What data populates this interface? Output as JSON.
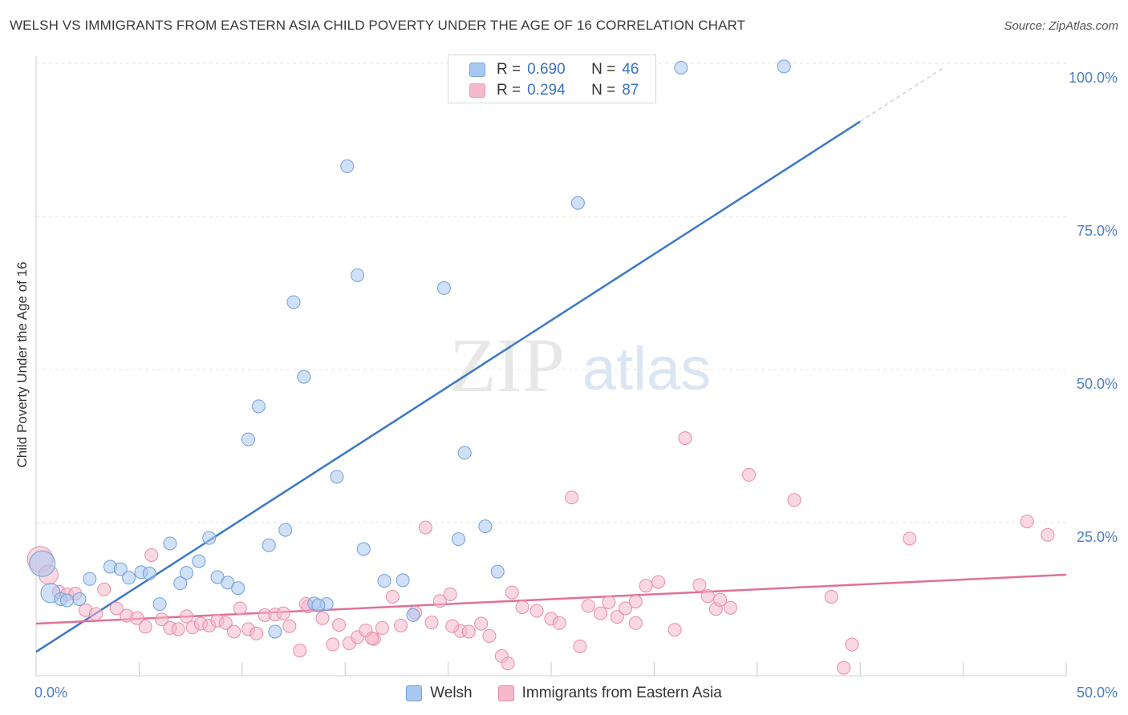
{
  "title": "WELSH VS IMMIGRANTS FROM EASTERN ASIA CHILD POVERTY UNDER THE AGE OF 16 CORRELATION CHART",
  "source": "Source: ZipAtlas.com",
  "watermark": {
    "zip": "ZIP",
    "atlas": "atlas"
  },
  "stats_legend": [
    {
      "r_label": "R =",
      "r_value": "0.690",
      "n_label": "N =",
      "n_value": "46",
      "color": "#a9c8f0"
    },
    {
      "r_label": "R =",
      "r_value": "0.294",
      "n_label": "N =",
      "n_value": "87",
      "color": "#f6b8cb"
    }
  ],
  "chart_data": {
    "type": "scatter",
    "ylabel": "Child Poverty Under the Age of 16",
    "xlim": [
      0,
      50
    ],
    "ylim": [
      0,
      100
    ],
    "x_tick_labels": [
      {
        "value": 0,
        "label": "0.0%"
      },
      {
        "value": 50,
        "label": "50.0%"
      }
    ],
    "y_tick_labels": [
      {
        "value": 25,
        "label": "25.0%"
      },
      {
        "value": 50,
        "label": "50.0%"
      },
      {
        "value": 75,
        "label": "75.0%"
      },
      {
        "value": 100,
        "label": "100.0%"
      }
    ],
    "grid": true,
    "series": [
      {
        "name": "Welsh",
        "color": "#a9c8f0",
        "stroke": "#6f9fd8",
        "trend": {
          "x0": 0,
          "y0": 3.9,
          "x1": 40,
          "y1": 90.5,
          "dash_to_x": 44,
          "dash_to_y": 99.2,
          "color": "#3a78c9"
        },
        "points": [
          [
            0.3,
            18.3,
            3
          ],
          [
            0.7,
            13.5,
            2
          ],
          [
            1.2,
            12.5,
            1
          ],
          [
            1.5,
            12.3,
            1
          ],
          [
            2.1,
            12.5,
            1
          ],
          [
            2.6,
            15.8,
            1
          ],
          [
            3.6,
            17.8,
            1
          ],
          [
            4.1,
            17.4,
            1
          ],
          [
            4.5,
            16.0,
            1
          ],
          [
            5.1,
            16.9,
            1
          ],
          [
            5.5,
            16.7,
            1
          ],
          [
            6.0,
            11.7,
            1
          ],
          [
            6.5,
            21.6,
            1
          ],
          [
            7.0,
            15.1,
            1
          ],
          [
            7.3,
            16.8,
            1
          ],
          [
            7.9,
            18.7,
            1
          ],
          [
            8.4,
            22.5,
            1
          ],
          [
            8.8,
            16.1,
            1
          ],
          [
            9.3,
            15.2,
            1
          ],
          [
            9.8,
            14.3,
            1
          ],
          [
            10.3,
            38.6,
            1
          ],
          [
            10.8,
            44.0,
            1
          ],
          [
            11.3,
            21.3,
            1
          ],
          [
            11.6,
            7.2,
            1
          ],
          [
            12.1,
            23.8,
            1
          ],
          [
            12.5,
            61.0,
            1
          ],
          [
            13.0,
            48.8,
            1
          ],
          [
            13.5,
            11.8,
            1
          ],
          [
            14.1,
            11.7,
            1
          ],
          [
            14.6,
            32.5,
            1
          ],
          [
            15.1,
            83.2,
            1
          ],
          [
            15.6,
            65.4,
            1
          ],
          [
            15.9,
            20.7,
            1
          ],
          [
            16.9,
            15.5,
            1
          ],
          [
            17.8,
            15.6,
            1
          ],
          [
            18.3,
            9.9,
            1
          ],
          [
            19.8,
            63.3,
            1
          ],
          [
            20.5,
            22.3,
            1
          ],
          [
            20.8,
            36.4,
            1
          ],
          [
            21.8,
            24.4,
            1
          ],
          [
            22.4,
            17.0,
            1
          ],
          [
            23.8,
            99.5,
            1
          ],
          [
            26.3,
            77.2,
            1
          ],
          [
            31.3,
            99.3,
            1
          ],
          [
            36.3,
            99.5,
            1
          ],
          [
            13.7,
            11.5,
            1
          ]
        ]
      },
      {
        "name": "Immigrants from Eastern Asia",
        "color": "#f6b8cb",
        "stroke": "#e88aa8",
        "trend": {
          "x0": 0,
          "y0": 8.5,
          "x1": 50,
          "y1": 16.5,
          "color": "#e0709a"
        },
        "points": [
          [
            0.2,
            19.0,
            3
          ],
          [
            0.6,
            16.5,
            2
          ],
          [
            1.1,
            13.7,
            1
          ],
          [
            1.5,
            13.3,
            1
          ],
          [
            1.9,
            13.4,
            1
          ],
          [
            2.4,
            10.7,
            1
          ],
          [
            2.9,
            10.1,
            1
          ],
          [
            3.3,
            14.1,
            1
          ],
          [
            3.9,
            11.0,
            1
          ],
          [
            4.4,
            9.8,
            1
          ],
          [
            4.9,
            9.4,
            1
          ],
          [
            5.3,
            8.0,
            1
          ],
          [
            5.6,
            19.7,
            1
          ],
          [
            6.1,
            9.2,
            1
          ],
          [
            6.5,
            7.8,
            1
          ],
          [
            6.9,
            7.6,
            1
          ],
          [
            7.3,
            9.7,
            1
          ],
          [
            7.6,
            7.9,
            1
          ],
          [
            8.0,
            8.5,
            1
          ],
          [
            8.4,
            8.2,
            1
          ],
          [
            8.8,
            9.0,
            1
          ],
          [
            9.2,
            8.6,
            1
          ],
          [
            9.6,
            7.2,
            1
          ],
          [
            9.9,
            11.0,
            1
          ],
          [
            10.3,
            7.6,
            1
          ],
          [
            10.7,
            6.9,
            1
          ],
          [
            11.1,
            9.9,
            1
          ],
          [
            11.6,
            10.0,
            1
          ],
          [
            12.0,
            10.2,
            1
          ],
          [
            12.3,
            8.1,
            1
          ],
          [
            12.8,
            4.1,
            1
          ],
          [
            13.2,
            11.3,
            1
          ],
          [
            13.9,
            9.4,
            1
          ],
          [
            14.4,
            5.1,
            1
          ],
          [
            14.7,
            8.3,
            1
          ],
          [
            15.2,
            5.3,
            1
          ],
          [
            15.6,
            6.3,
            1
          ],
          [
            16.0,
            7.4,
            1
          ],
          [
            16.4,
            6.0,
            1
          ],
          [
            16.8,
            7.8,
            1
          ],
          [
            17.3,
            12.9,
            1
          ],
          [
            17.7,
            8.2,
            1
          ],
          [
            18.4,
            10.3,
            1
          ],
          [
            18.9,
            24.2,
            1
          ],
          [
            19.2,
            8.7,
            1
          ],
          [
            19.6,
            12.2,
            1
          ],
          [
            20.1,
            13.3,
            1
          ],
          [
            20.6,
            7.3,
            1
          ],
          [
            21.0,
            7.2,
            1
          ],
          [
            21.6,
            8.5,
            1
          ],
          [
            22.0,
            6.5,
            1
          ],
          [
            22.6,
            3.2,
            1
          ],
          [
            22.9,
            2.0,
            1
          ],
          [
            23.1,
            13.6,
            1
          ],
          [
            23.6,
            11.2,
            1
          ],
          [
            24.3,
            10.6,
            1
          ],
          [
            25.0,
            9.3,
            1
          ],
          [
            25.4,
            8.6,
            1
          ],
          [
            26.0,
            29.1,
            1
          ],
          [
            26.4,
            4.8,
            1
          ],
          [
            27.4,
            10.2,
            1
          ],
          [
            27.8,
            12.0,
            1
          ],
          [
            28.2,
            9.6,
            1
          ],
          [
            28.6,
            11.0,
            1
          ],
          [
            29.1,
            8.6,
            1
          ],
          [
            29.6,
            14.7,
            1
          ],
          [
            30.2,
            15.3,
            1
          ],
          [
            31.0,
            7.5,
            1
          ],
          [
            31.5,
            38.8,
            1
          ],
          [
            32.2,
            14.8,
            1
          ],
          [
            32.6,
            13.0,
            1
          ],
          [
            33.0,
            10.9,
            1
          ],
          [
            33.7,
            11.1,
            1
          ],
          [
            34.6,
            32.8,
            1
          ],
          [
            36.8,
            28.7,
            1
          ],
          [
            38.6,
            12.9,
            1
          ],
          [
            39.2,
            1.3,
            1
          ],
          [
            39.6,
            5.1,
            1
          ],
          [
            42.4,
            22.4,
            1
          ],
          [
            48.1,
            25.2,
            1
          ],
          [
            49.1,
            23.0,
            1
          ],
          [
            13.1,
            11.7,
            1
          ],
          [
            16.3,
            6.1,
            1
          ],
          [
            20.2,
            8.1,
            1
          ],
          [
            26.8,
            11.4,
            1
          ],
          [
            29.1,
            12.1,
            1
          ],
          [
            33.2,
            12.4,
            1
          ]
        ]
      }
    ]
  }
}
